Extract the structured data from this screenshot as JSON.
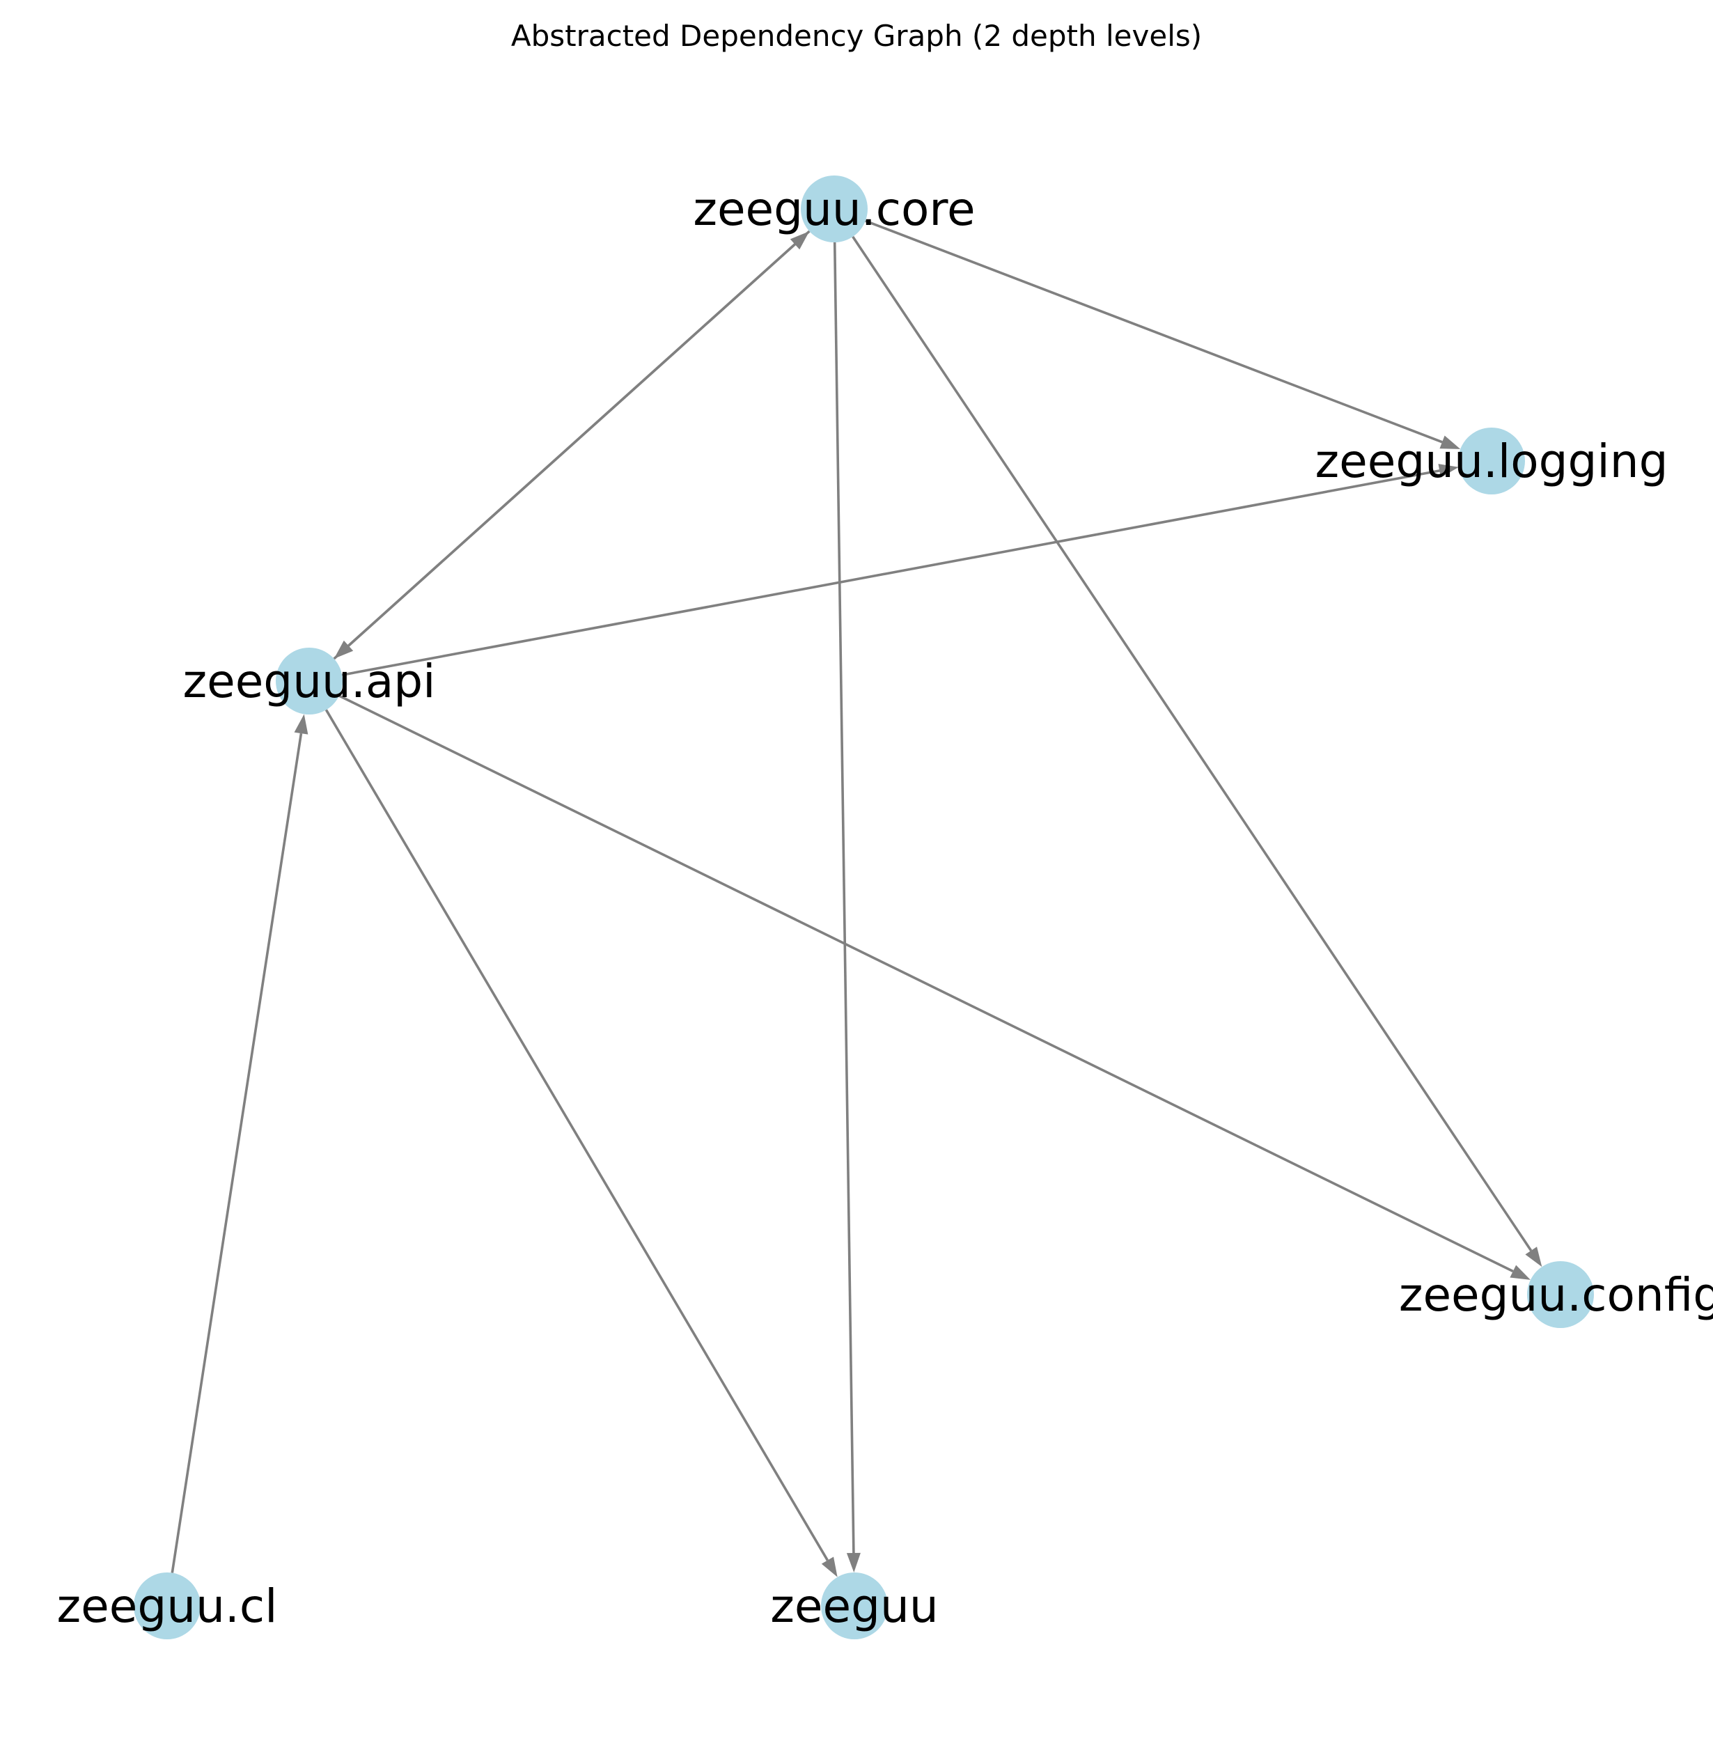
{
  "diagram": {
    "title": "Abstracted Dependency Graph (2 depth levels)",
    "colors": {
      "node_fill": "#add8e6",
      "edge": "#808080",
      "label": "#000000"
    },
    "nodes": [
      {
        "id": "core",
        "label": "zeeguu.core"
      },
      {
        "id": "logging",
        "label": "zeeguu.logging"
      },
      {
        "id": "api",
        "label": "zeeguu.api"
      },
      {
        "id": "config",
        "label": "zeeguu.config"
      },
      {
        "id": "cl",
        "label": "zeeguu.cl"
      },
      {
        "id": "root",
        "label": "zeeguu"
      }
    ],
    "edges": [
      {
        "from": "core",
        "to": "api"
      },
      {
        "from": "api",
        "to": "core"
      },
      {
        "from": "core",
        "to": "logging"
      },
      {
        "from": "core",
        "to": "config"
      },
      {
        "from": "core",
        "to": "root"
      },
      {
        "from": "api",
        "to": "logging"
      },
      {
        "from": "api",
        "to": "config"
      },
      {
        "from": "api",
        "to": "root"
      },
      {
        "from": "cl",
        "to": "api"
      }
    ]
  }
}
